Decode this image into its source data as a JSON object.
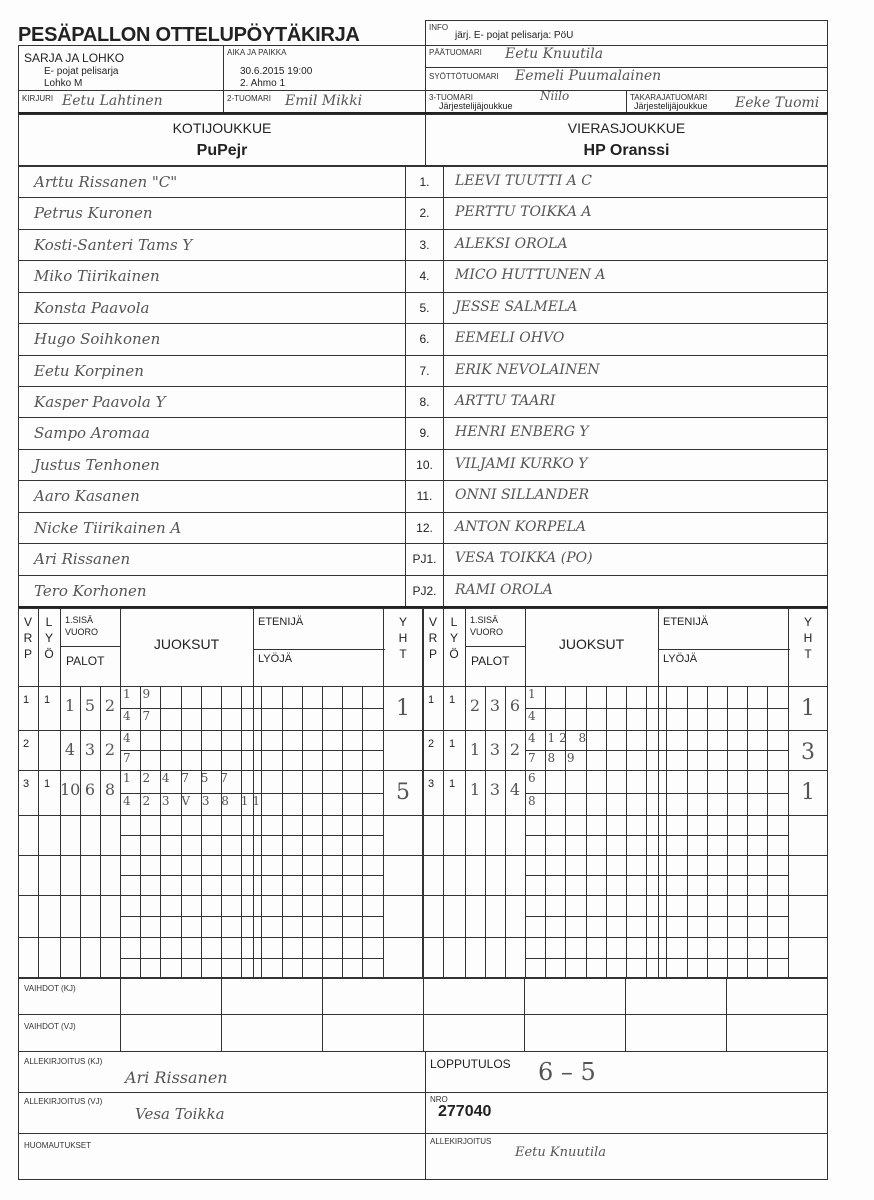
{
  "title": "PESÄPALLON OTTELUPÖYTÄKIRJA",
  "info": {
    "label": "INFO",
    "value": "järj. E- pojat pelisarja: PöU"
  },
  "sarja": {
    "label": "SARJA JA LOHKO",
    "line1": "E- pojat pelisarja",
    "line2": "Lohko M"
  },
  "aika": {
    "label": "AIKA JA PAIKKA",
    "line1": "30.6.2015 19:00",
    "line2": "2. Ahmo 1"
  },
  "paatuomari": {
    "label": "PÄÄTUOMARI",
    "value": "Eetu Knuutila"
  },
  "syottotuomari": {
    "label": "SYÖTTÖTUOMARI",
    "value": "Eemeli Puumalainen"
  },
  "kirjuri": {
    "label": "KIRJURI",
    "value": "Eetu Lahtinen"
  },
  "tuomari2": {
    "label": "2-TUOMARI",
    "value": "Emil Mikki"
  },
  "tuomari3": {
    "label": "3-TUOMARI",
    "sub": "Järjestelijäjoukkue",
    "value": "Niilo"
  },
  "takaraja": {
    "label": "TAKARAJATUOMARI",
    "sub": "Järjestelijäjoukkue",
    "value": "Eeke Tuomi"
  },
  "home": {
    "label": "KOTIJOUKKUE",
    "name": "PuPejr",
    "players": [
      "Arttu Rissanen \"C\"",
      "Petrus Kuronen",
      "Kosti-Santeri Tams Y",
      "Miko Tiirikainen",
      "Konsta Paavola",
      "Hugo Soihkonen",
      "Eetu Korpinen",
      "Kasper Paavola Y",
      "Sampo Aromaa",
      "Justus Tenhonen",
      "Aaro Kasanen",
      "Nicke Tiirikainen A",
      "Ari Rissanen",
      "Tero Korhonen"
    ]
  },
  "away": {
    "label": "VIERASJOUKKUE",
    "name": "HP Oranssi",
    "players": [
      "LEEVI TUUTTI   A  C",
      "PERTTU TOIKKA   A",
      "ALEKSI OROLA",
      "MICO HUTTUNEN   A",
      "JESSE SALMELA",
      "EEMELI OHVO",
      "ERIK NEVOLAINEN",
      "ARTTU TAARI",
      "HENRI ENBERG   Y",
      "VILJAMI KURKO   Y",
      "ONNI SILLANDER",
      "ANTON KORPELA",
      "VESA TOIKKA (PO)",
      "RAMI OROLA"
    ]
  },
  "numbers": [
    "1.",
    "2.",
    "3.",
    "4.",
    "5.",
    "6.",
    "7.",
    "8.",
    "9.",
    "10.",
    "11.",
    "12.",
    "PJ1.",
    "PJ2."
  ],
  "score_header": {
    "vrp": [
      "V",
      "R",
      "P"
    ],
    "lyo": [
      "L",
      "Y",
      "Ö"
    ],
    "sisa": "1.SISÄ VUORO",
    "palot": "PALOT",
    "juoksut": "JUOKSUT",
    "etenija": "ETENIJÄ",
    "lyoja": "LYÖJÄ",
    "yht": [
      "Y",
      "H",
      "T"
    ]
  },
  "home_innings": [
    {
      "vrp": "1",
      "lyo": "1",
      "palot": [
        "1",
        "5",
        "2"
      ],
      "runs_top": "1 9",
      "runs_bottom": "4 7",
      "yht": "1"
    },
    {
      "vrp": "2",
      "lyo": "",
      "palot": [
        "4",
        "3",
        "2"
      ],
      "runs_top": "4",
      "runs_bottom": "7",
      "yht": ""
    },
    {
      "vrp": "3",
      "lyo": "1",
      "palot": [
        "10",
        "6",
        "8"
      ],
      "runs_top": "1 2 4 7 5 7",
      "runs_bottom": "4 2 3 V 3 8 11",
      "yht": "5"
    }
  ],
  "away_innings": [
    {
      "vrp": "1",
      "lyo": "1",
      "palot": [
        "2",
        "3",
        "6"
      ],
      "runs_top": "1",
      "runs_bottom": "4",
      "yht": "1"
    },
    {
      "vrp": "2",
      "lyo": "1",
      "palot": [
        "1",
        "3",
        "2"
      ],
      "runs_top": "4 12 8",
      "runs_bottom": "7 8 9",
      "yht": "3"
    },
    {
      "vrp": "3",
      "lyo": "1",
      "palot": [
        "1",
        "3",
        "4"
      ],
      "runs_top": "6",
      "runs_bottom": "8",
      "yht": "1"
    }
  ],
  "vaihdot_kj": "VAIHDOT (KJ)",
  "vaihdot_vj": "VAIHDOT (VJ)",
  "allekirjoitus_kj": {
    "label": "ALLEKIRJOITUS (KJ)",
    "value": "Ari Rissanen"
  },
  "allekirjoitus_vj": {
    "label": "ALLEKIRJOITUS (VJ)",
    "value": "Vesa Toikka"
  },
  "huomautukset": "HUOMAUTUKSET",
  "lopputulos": {
    "label": "LOPPUTULOS",
    "value": "6 – 5"
  },
  "nro": {
    "label": "NRO",
    "value": "277040"
  },
  "allekirjoitus": {
    "label": "ALLEKIRJOITUS",
    "value": "Eetu Knuutila"
  }
}
